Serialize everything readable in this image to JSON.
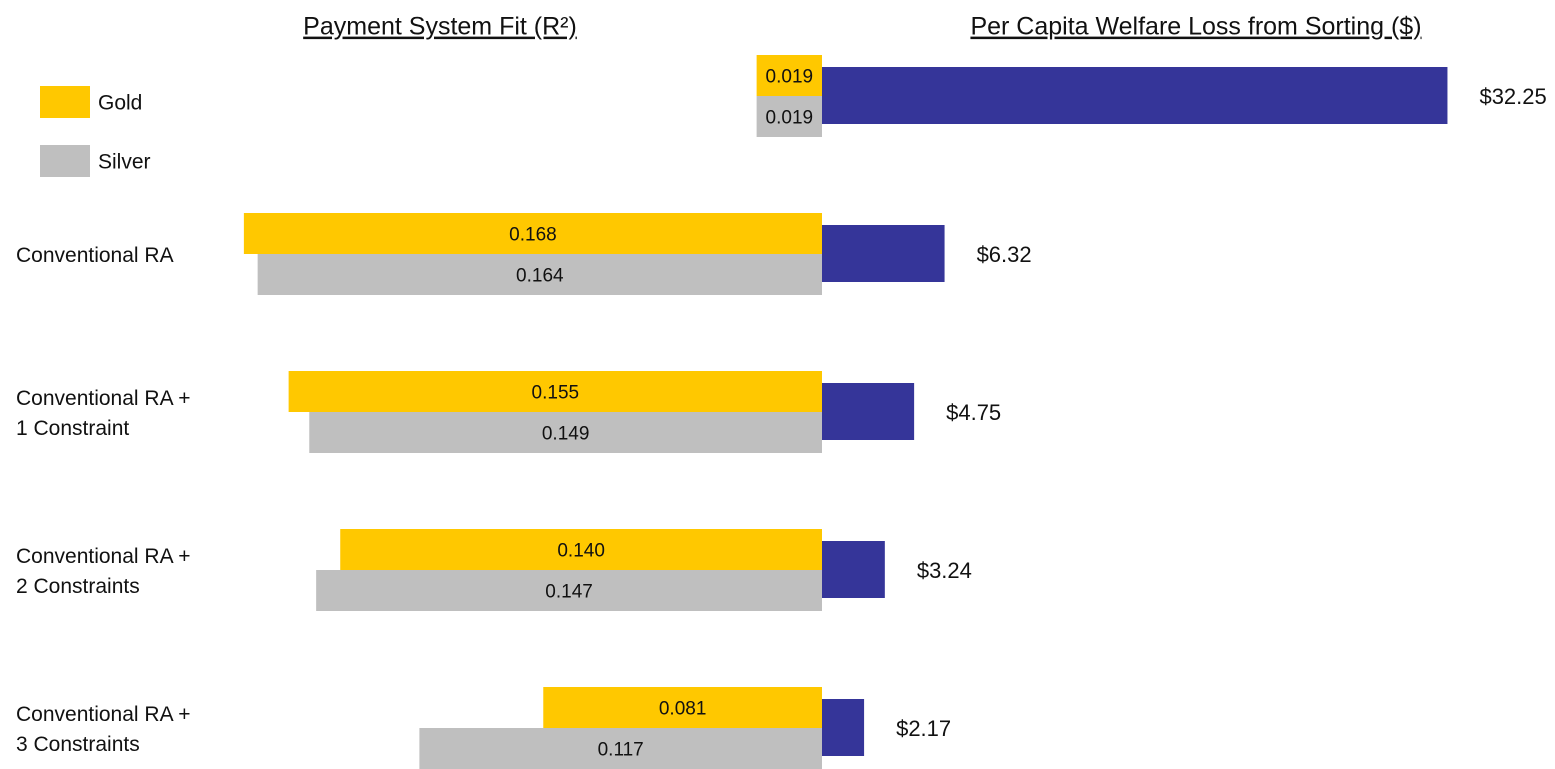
{
  "chart_data": [
    {
      "type": "bar",
      "orientation": "horizontal",
      "direction": "reversed",
      "title": "Payment System Fit (R²)",
      "categories": [
        null,
        "Conventional RA",
        "Conventional RA +\n1 Constraint",
        "Conventional RA +\n2 Constraints",
        "Conventional RA +\n3 Constraints"
      ],
      "series": [
        {
          "name": "Gold",
          "color": "#ffc800",
          "values": [
            0.019,
            0.168,
            0.155,
            0.14,
            0.081
          ],
          "value_labels": [
            "0.019",
            "0.168",
            "0.155",
            "0.140",
            "0.081"
          ]
        },
        {
          "name": "Silver",
          "color": "#bfbfbf",
          "values": [
            0.019,
            0.164,
            0.149,
            0.147,
            0.117
          ]
        }
      ],
      "xlim": [
        0,
        0.17
      ],
      "legend": "top-left"
    },
    {
      "type": "bar",
      "orientation": "horizontal",
      "title": "Per Capita Welfare Loss from Sorting ($)",
      "values": [
        32.25,
        6.32,
        4.75,
        3.24,
        2.17
      ],
      "value_labels": [
        "$32.25",
        "$6.32",
        "$4.75",
        "$3.24",
        "$2.17"
      ],
      "color": "#353599",
      "xlim": [
        0,
        33
      ]
    }
  ]
}
